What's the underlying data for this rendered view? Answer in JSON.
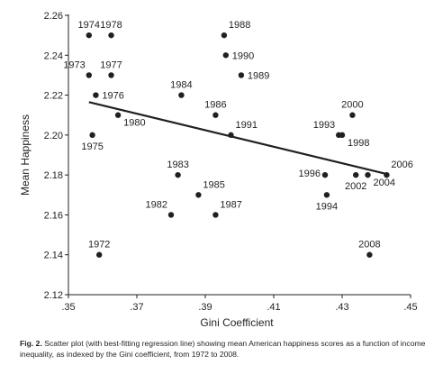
{
  "chart_data": {
    "type": "scatter",
    "title": "",
    "xlabel": "Gini Coefficient",
    "ylabel": "Mean Happiness",
    "xlim": [
      0.35,
      0.45
    ],
    "ylim": [
      2.12,
      2.26
    ],
    "x_ticks": [
      0.35,
      0.37,
      0.39,
      0.41,
      0.43,
      0.45
    ],
    "x_tick_labels": [
      ".35",
      ".37",
      ".39",
      ".41",
      ".43",
      ".45"
    ],
    "y_ticks": [
      2.12,
      2.14,
      2.16,
      2.18,
      2.2,
      2.22,
      2.24,
      2.26
    ],
    "y_tick_labels": [
      "2.12",
      "2.14",
      "2.16",
      "2.18",
      "2.20",
      "2.22",
      "2.24",
      "2.26"
    ],
    "grid": false,
    "points": [
      {
        "label": "1972",
        "x": 0.359,
        "y": 2.14,
        "label_pos": "above"
      },
      {
        "label": "1973",
        "x": 0.356,
        "y": 2.23,
        "label_pos": "above-left"
      },
      {
        "label": "1974",
        "x": 0.356,
        "y": 2.25,
        "label_pos": "above"
      },
      {
        "label": "1975",
        "x": 0.357,
        "y": 2.2,
        "label_pos": "below"
      },
      {
        "label": "1976",
        "x": 0.358,
        "y": 2.22,
        "label_pos": "right"
      },
      {
        "label": "1977",
        "x": 0.3625,
        "y": 2.23,
        "label_pos": "above"
      },
      {
        "label": "1978",
        "x": 0.3625,
        "y": 2.25,
        "label_pos": "above"
      },
      {
        "label": "1980",
        "x": 0.3645,
        "y": 2.21,
        "label_pos": "below-right"
      },
      {
        "label": "1982",
        "x": 0.38,
        "y": 2.16,
        "label_pos": "above-left"
      },
      {
        "label": "1983",
        "x": 0.382,
        "y": 2.18,
        "label_pos": "above"
      },
      {
        "label": "1984",
        "x": 0.383,
        "y": 2.22,
        "label_pos": "above"
      },
      {
        "label": "1985",
        "x": 0.388,
        "y": 2.17,
        "label_pos": "above-right"
      },
      {
        "label": "1986",
        "x": 0.393,
        "y": 2.21,
        "label_pos": "above"
      },
      {
        "label": "1987",
        "x": 0.393,
        "y": 2.16,
        "label_pos": "above-right"
      },
      {
        "label": "1988",
        "x": 0.3955,
        "y": 2.25,
        "label_pos": "above-right"
      },
      {
        "label": "1989",
        "x": 0.4005,
        "y": 2.23,
        "label_pos": "right"
      },
      {
        "label": "1990",
        "x": 0.396,
        "y": 2.24,
        "label_pos": "right"
      },
      {
        "label": "1991",
        "x": 0.3975,
        "y": 2.2,
        "label_pos": "above-right"
      },
      {
        "label": "1993",
        "x": 0.429,
        "y": 2.2,
        "label_pos": "above-left"
      },
      {
        "label": "1994",
        "x": 0.4255,
        "y": 2.17,
        "label_pos": "below"
      },
      {
        "label": "1996",
        "x": 0.425,
        "y": 2.18,
        "label_pos": "left"
      },
      {
        "label": "1998",
        "x": 0.43,
        "y": 2.2,
        "label_pos": "below-right"
      },
      {
        "label": "2000",
        "x": 0.433,
        "y": 2.21,
        "label_pos": "above"
      },
      {
        "label": "2002",
        "x": 0.434,
        "y": 2.18,
        "label_pos": "below"
      },
      {
        "label": "2004",
        "x": 0.4375,
        "y": 2.18,
        "label_pos": "below-right"
      },
      {
        "label": "2006",
        "x": 0.443,
        "y": 2.18,
        "label_pos": "above-right"
      },
      {
        "label": "2008",
        "x": 0.438,
        "y": 2.14,
        "label_pos": "above"
      }
    ],
    "regression_line": {
      "x": [
        0.356,
        0.443
      ],
      "y": [
        2.2165,
        2.1805
      ]
    }
  },
  "caption": {
    "fig_label": "Fig. 2.",
    "text": " Scatter plot (with best-fitting regression line) showing mean American happiness scores as a function of income inequality, as indexed by the Gini coefficient, from 1972 to 2008."
  }
}
